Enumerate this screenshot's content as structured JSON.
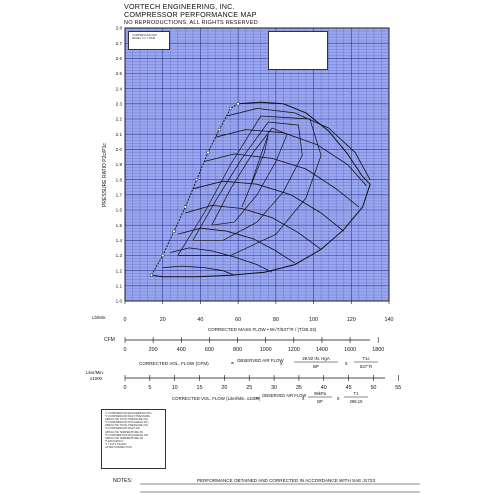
{
  "header": {
    "company": "VORTECH ENGINEERING, INC.",
    "title": "COMPRESSOR PERFORMANCE MAP",
    "rights": "NO REPRODUCTIONS, ALL RIGHTS RESERVED"
  },
  "small_box_lines": [
    "COMPRESSOR MAP",
    "MODEL V-1 T-TRIM"
  ],
  "chart_data": {
    "type": "line",
    "title": "",
    "ylabel": "PRESSURE RATIO P2c/P1c",
    "xlabel": "CORRECTED MASS FLOW • W√T/537°R / (T/29.33)",
    "x_unit": "Lb/Min.",
    "xlim": [
      0,
      140
    ],
    "ylim": [
      1.0,
      2.8
    ],
    "x_ticks": [
      0,
      20,
      40,
      60,
      80,
      100,
      120,
      140
    ],
    "y_ticks": [
      1.0,
      1.1,
      1.2,
      1.3,
      1.4,
      1.5,
      1.6,
      1.7,
      1.8,
      1.9,
      2.0,
      2.1,
      2.2,
      2.3,
      2.4,
      2.5,
      2.6,
      2.7,
      2.8
    ],
    "grid": true,
    "surge_line": [
      [
        14,
        1.17
      ],
      [
        20,
        1.3
      ],
      [
        26,
        1.46
      ],
      [
        32,
        1.62
      ],
      [
        38,
        1.8
      ],
      [
        44,
        1.98
      ],
      [
        50,
        2.13
      ],
      [
        56,
        2.27
      ],
      [
        60,
        2.3
      ]
    ],
    "outer_boundary": [
      [
        60,
        2.3
      ],
      [
        72,
        2.31
      ],
      [
        84,
        2.3
      ],
      [
        96,
        2.24
      ],
      [
        108,
        2.12
      ],
      [
        118,
        1.97
      ],
      [
        126,
        1.82
      ],
      [
        130,
        1.77
      ],
      [
        126,
        1.62
      ],
      [
        116,
        1.47
      ],
      [
        104,
        1.34
      ],
      [
        90,
        1.24
      ],
      [
        74,
        1.19
      ],
      [
        56,
        1.17
      ],
      [
        38,
        1.16
      ],
      [
        20,
        1.16
      ],
      [
        14,
        1.17
      ]
    ],
    "speed_lines": [
      [
        [
          20,
          1.22
        ],
        [
          30,
          1.23
        ],
        [
          42,
          1.22
        ],
        [
          52,
          1.2
        ],
        [
          58,
          1.17
        ]
      ],
      [
        [
          24,
          1.32
        ],
        [
          34,
          1.35
        ],
        [
          46,
          1.33
        ],
        [
          58,
          1.29
        ],
        [
          70,
          1.24
        ],
        [
          78,
          1.19
        ]
      ],
      [
        [
          28,
          1.44
        ],
        [
          40,
          1.48
        ],
        [
          54,
          1.46
        ],
        [
          68,
          1.41
        ],
        [
          80,
          1.33
        ],
        [
          90,
          1.25
        ]
      ],
      [
        [
          32,
          1.58
        ],
        [
          46,
          1.63
        ],
        [
          62,
          1.61
        ],
        [
          78,
          1.55
        ],
        [
          92,
          1.45
        ],
        [
          104,
          1.34
        ]
      ],
      [
        [
          36,
          1.74
        ],
        [
          52,
          1.79
        ],
        [
          70,
          1.77
        ],
        [
          88,
          1.7
        ],
        [
          104,
          1.58
        ],
        [
          116,
          1.46
        ]
      ],
      [
        [
          42,
          1.92
        ],
        [
          58,
          1.97
        ],
        [
          78,
          1.94
        ],
        [
          96,
          1.87
        ],
        [
          112,
          1.74
        ],
        [
          124,
          1.62
        ]
      ],
      [
        [
          48,
          2.08
        ],
        [
          64,
          2.13
        ],
        [
          84,
          2.11
        ],
        [
          102,
          2.03
        ],
        [
          118,
          1.9
        ],
        [
          128,
          1.76
        ]
      ],
      [
        [
          54,
          2.22
        ],
        [
          70,
          2.27
        ],
        [
          90,
          2.24
        ],
        [
          108,
          2.14
        ],
        [
          122,
          1.98
        ],
        [
          130,
          1.8
        ]
      ]
    ],
    "efficiency_islands": [
      [
        [
          62,
          1.62
        ],
        [
          68,
          1.8
        ],
        [
          74,
          1.98
        ],
        [
          76,
          2.1
        ],
        [
          72,
          1.96
        ],
        [
          66,
          1.74
        ],
        [
          62,
          1.62
        ]
      ],
      [
        [
          46,
          1.5
        ],
        [
          56,
          1.74
        ],
        [
          68,
          1.98
        ],
        [
          78,
          2.14
        ],
        [
          86,
          2.1
        ],
        [
          80,
          1.92
        ],
        [
          70,
          1.7
        ],
        [
          58,
          1.52
        ],
        [
          46,
          1.5
        ]
      ],
      [
        [
          36,
          1.4
        ],
        [
          48,
          1.66
        ],
        [
          62,
          1.94
        ],
        [
          76,
          2.18
        ],
        [
          92,
          2.16
        ],
        [
          94,
          1.96
        ],
        [
          84,
          1.72
        ],
        [
          70,
          1.52
        ],
        [
          52,
          1.4
        ],
        [
          36,
          1.4
        ]
      ],
      [
        [
          28,
          1.3
        ],
        [
          42,
          1.58
        ],
        [
          56,
          1.9
        ],
        [
          72,
          2.22
        ],
        [
          98,
          2.2
        ],
        [
          104,
          1.96
        ],
        [
          96,
          1.68
        ],
        [
          80,
          1.44
        ],
        [
          56,
          1.3
        ],
        [
          28,
          1.3
        ]
      ]
    ],
    "cfm_scale": {
      "label": "CFM",
      "ticks": [
        0,
        200,
        400,
        600,
        800,
        1000,
        1200,
        1400,
        1600,
        1800
      ],
      "mass_flow_per_cfm": 0.0746
    },
    "lpm_scale": {
      "label": "Liter/Min. x1000",
      "ticks": [
        0,
        5,
        10,
        15,
        20,
        25,
        30,
        35,
        40,
        45,
        50,
        55
      ],
      "mass_flow_per_unit": 2.635
    }
  },
  "formula_cfm": {
    "lhs": "CORRECTED VOL. FLOW (CFM)",
    "observed": "OBSERVED AIR FLOW",
    "bp_num": "29.92 IN. HgA",
    "bp_den": "BP",
    "t_num": "T1c",
    "t_den": "537°R"
  },
  "formula_lpm": {
    "lhs": "CORRECTED VOL. FLOW (Liter/Min. x1000)",
    "observed": "OBSERVED AIR FLOW",
    "bp_num": "99kPa",
    "bp_den": "BP",
    "t_num": "T1",
    "t_den": "298.15"
  },
  "legend_box_lines": [
    "*1 COMPRESSOR ENGINEERING INTL",
    "*2 COMPRESSOR INLET PRESSURE",
    "   ABSOLUTE TOTAL PRESSURE (IN.)",
    "*3 COMPRESSOR DISCHARGE (IN.)",
    "   ABSOLUTE TOTAL PRESSURE (IN.)",
    "*4 COMPRESSOR INLET AIR",
    "   ABSOLUTE TEMPERATURE (R)",
    "*5 COMPRESSOR DISCHARGE AIR",
    "   ABSOLUTE TEMPERATURE (R)",
    "*6 EFFICIENCY",
    "*7 T1c/T1·P2c/P1c",
    "   AFTER CORRECTION"
  ],
  "notes": {
    "label": "NOTES:",
    "text": "PERFORMANCE OBTAINED AND CORRECTED IN ACCORDANCE WITH SAE J1723"
  },
  "colors": {
    "plot_bg": "#9aa6ee",
    "grid_minor": "#5968c4",
    "grid_major": "#2a3595",
    "ink": "#111111"
  }
}
